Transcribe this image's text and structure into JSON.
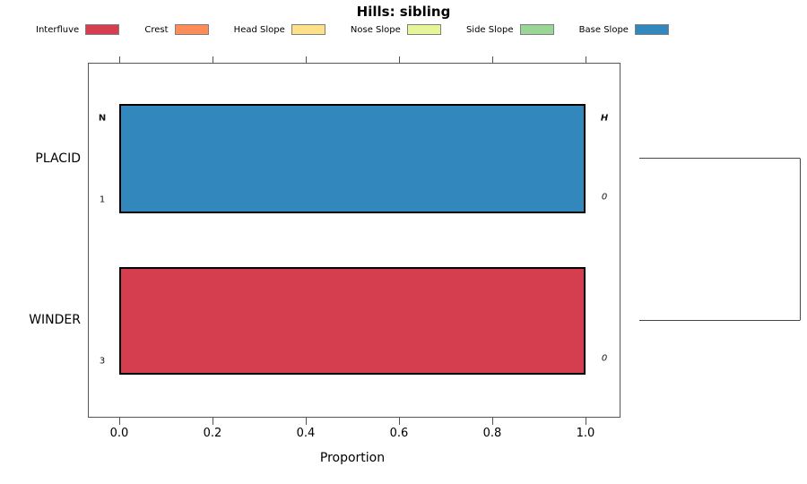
{
  "title": "Hills: sibling",
  "chart_data": {
    "type": "bar",
    "stacked": true,
    "orientation": "horizontal",
    "title": "Hills: sibling",
    "xlabel": "Proportion",
    "xlim": [
      0,
      1
    ],
    "x_ticks": [
      "0.0",
      "0.2",
      "0.4",
      "0.6",
      "0.8",
      "1.0"
    ],
    "grid": false,
    "legend_position": "top",
    "categories": [
      "PLACID",
      "WINDER"
    ],
    "series": [
      {
        "name": "Interfluve",
        "color": "#D53E4F",
        "values": [
          0,
          1.0
        ]
      },
      {
        "name": "Crest",
        "color": "#FC8D59",
        "values": [
          0,
          0
        ]
      },
      {
        "name": "Head Slope",
        "color": "#FEE08B",
        "values": [
          0,
          0
        ]
      },
      {
        "name": "Nose Slope",
        "color": "#E6F598",
        "values": [
          0,
          0
        ]
      },
      {
        "name": "Side Slope",
        "color": "#99D594",
        "values": [
          0,
          0
        ]
      },
      {
        "name": "Base Slope",
        "color": "#3288BD",
        "values": [
          1.0,
          0
        ]
      }
    ],
    "annotations": {
      "col_left": "N",
      "col_right": "H",
      "values": [
        {
          "n": "1",
          "h": "0"
        },
        {
          "n": "3",
          "h": "0"
        }
      ]
    },
    "dendrogram": {
      "description": "two-leaf cluster bracket in right margin joining PLACID and WINDER rows",
      "leaves": [
        "PLACID",
        "WINDER"
      ]
    }
  }
}
